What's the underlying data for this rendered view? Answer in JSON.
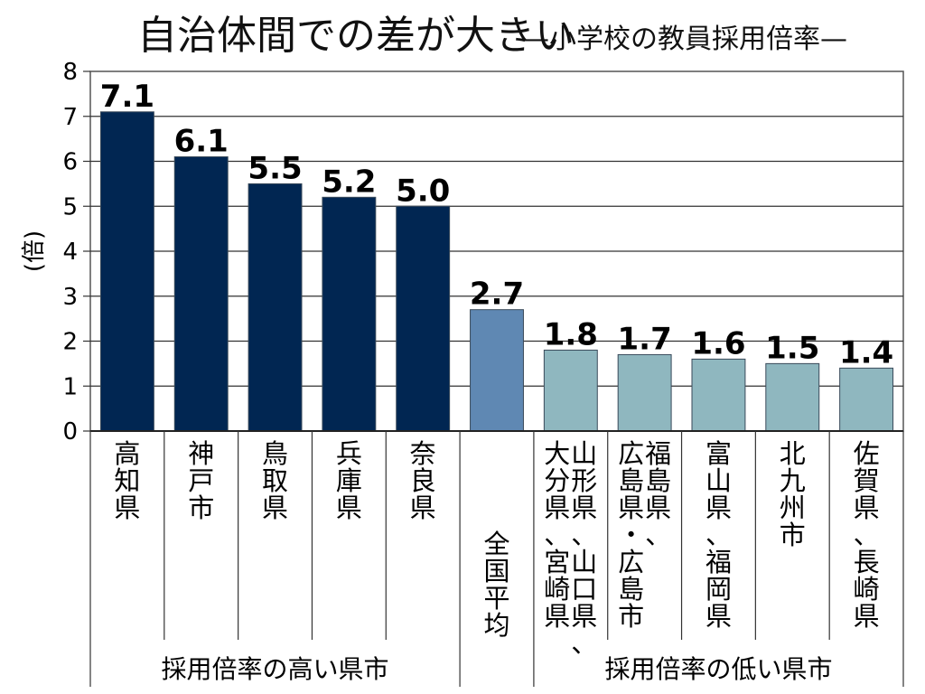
{
  "title": {
    "main": "自治体間での差が大きい",
    "sub": "—小学校の教員採用倍率—"
  },
  "chart_data": {
    "type": "bar",
    "ylabel": "(倍)",
    "ylim": [
      0,
      8
    ],
    "yticks": [
      "0",
      "1",
      "2",
      "3",
      "4",
      "5",
      "6",
      "7",
      "8"
    ],
    "grid": true,
    "categories": [
      [
        "高知県"
      ],
      [
        "神戸市"
      ],
      [
        "鳥取県"
      ],
      [
        "兵庫県"
      ],
      [
        "奈良県"
      ],
      [
        "全国平均"
      ],
      [
        "山形県、山口県、",
        "大分県、宮崎県"
      ],
      [
        "福島県、",
        "広島県・広島市"
      ],
      [
        "富山県、福岡県"
      ],
      [
        "北九州市"
      ],
      [
        "佐賀県、長崎県"
      ]
    ],
    "values": [
      7.1,
      6.1,
      5.5,
      5.2,
      5.0,
      2.7,
      1.8,
      1.7,
      1.6,
      1.5,
      1.4
    ],
    "value_labels": [
      "7.1",
      "6.1",
      "5.5",
      "5.2",
      "5.0",
      "2.7",
      "1.8",
      "1.7",
      "1.6",
      "1.5",
      "1.4"
    ],
    "groups": [
      {
        "label": "採用倍率の高い県市",
        "from": 0,
        "to": 4,
        "color": "#012652"
      },
      {
        "label": "",
        "from": 5,
        "to": 5,
        "color": "#5f88b3"
      },
      {
        "label": "採用倍率の低い県市",
        "from": 6,
        "to": 10,
        "color": "#8fb7bf"
      }
    ]
  }
}
